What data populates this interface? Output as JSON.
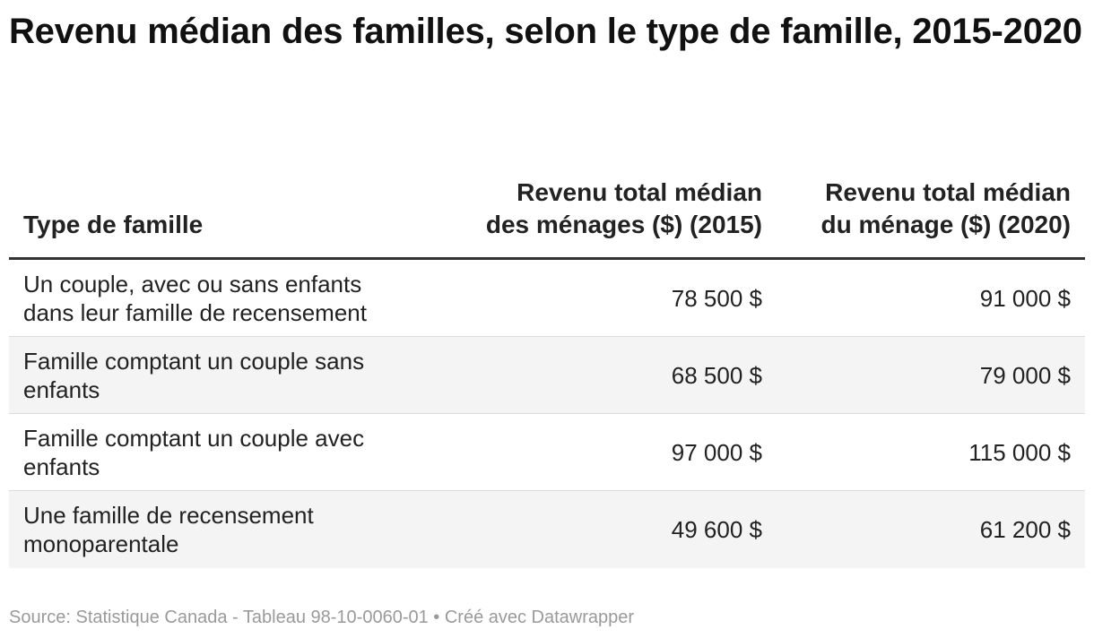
{
  "chart_data": {
    "type": "table",
    "title": "Revenu médian des familles, selon le type de famille, 2015-2020",
    "columns": [
      "Type de famille",
      "Revenu total médian des ménages ($) (2015)",
      "Revenu total médian du ménage ($) (2020)"
    ],
    "rows": [
      {
        "type": "Un couple, avec ou sans enfants dans leur famille de recensement",
        "v2015": 78500,
        "v2020": 91000,
        "v2015_text": "78 500 $",
        "v2020_text": "91 000 $"
      },
      {
        "type": "Famille comptant un couple sans enfants",
        "v2015": 68500,
        "v2020": 79000,
        "v2015_text": "68 500 $",
        "v2020_text": "79 000 $"
      },
      {
        "type": "Famille comptant un couple avec enfants",
        "v2015": 97000,
        "v2020": 115000,
        "v2015_text": "97 000 $",
        "v2020_text": "115 000 $"
      },
      {
        "type": "Une famille de recensement monoparentale",
        "v2015": 49600,
        "v2020": 61200,
        "v2015_text": "49 600 $",
        "v2020_text": "61 200 $"
      }
    ],
    "source": "Source: Statistique Canada - Tableau 98-10-0060-01 • Créé avec Datawrapper"
  }
}
